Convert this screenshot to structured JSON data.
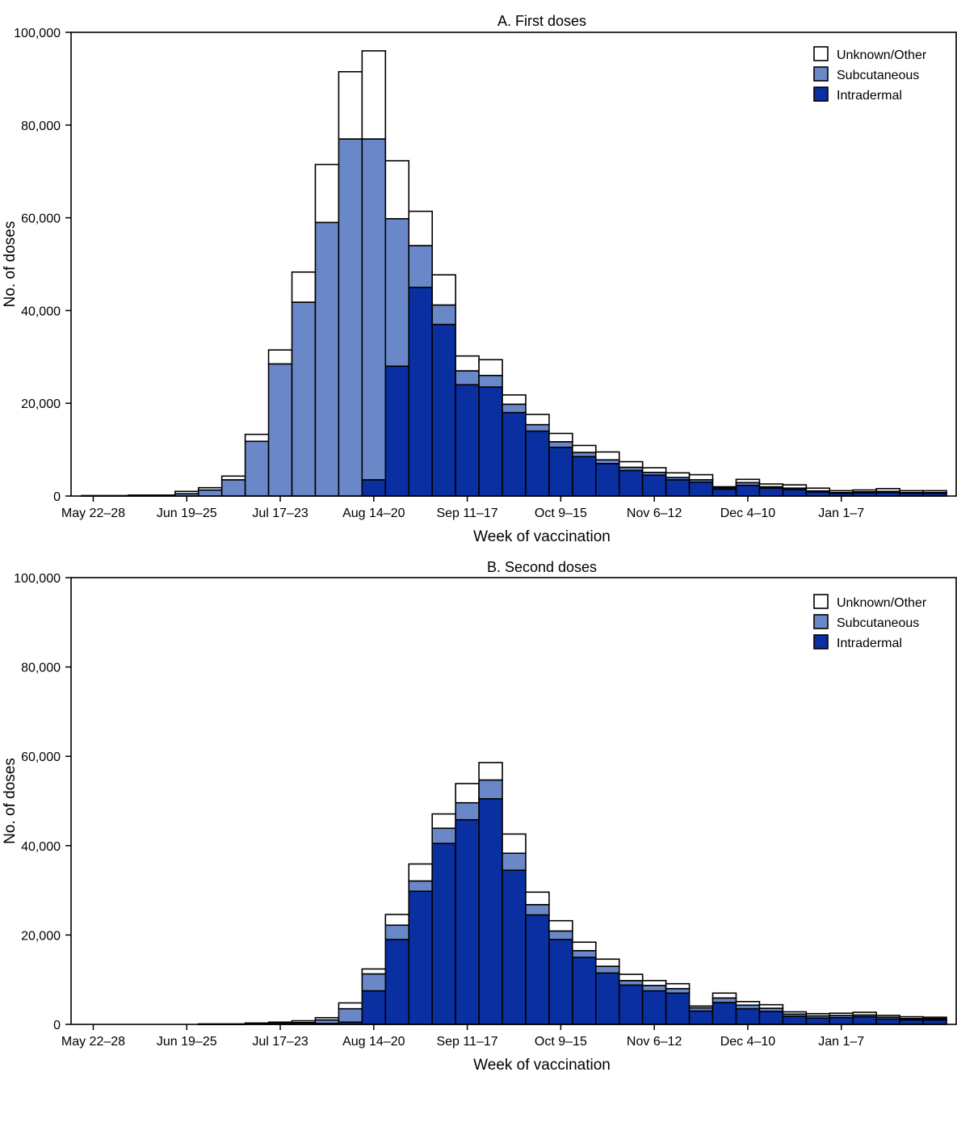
{
  "chart_data": [
    {
      "type": "bar",
      "stacked": true,
      "title": "A. First doses",
      "xlabel": "Week of vaccination",
      "ylabel": "No. of doses",
      "ylim": [
        0,
        100000
      ],
      "yticks": [
        "0",
        "20,000",
        "40,000",
        "60,000",
        "80,000",
        "100,000"
      ],
      "ytick_values": [
        0,
        20000,
        40000,
        60000,
        80000,
        100000
      ],
      "xtick_labels": [
        "May 22–28",
        "Jun 19–25",
        "Jul 17–23",
        "Aug 14–20",
        "Sep 11–17",
        "Oct 9–15",
        "Nov 6–12",
        "Dec 4–10",
        "Jan 1–7"
      ],
      "xtick_every": 4,
      "legend": [
        {
          "name": "Unknown/Other",
          "color": "#ffffff"
        },
        {
          "name": "Subcutaneous",
          "color": "#6a88c8"
        },
        {
          "name": "Intradermal",
          "color": "#0a2fa0"
        }
      ],
      "legend_position": "top-right",
      "series": [
        {
          "name": "Intradermal",
          "color": "#0a2fa0",
          "values": [
            0,
            0,
            0,
            0,
            0,
            0,
            0,
            0,
            0,
            0,
            0,
            0,
            3500,
            28000,
            45000,
            37000,
            24000,
            23500,
            18000,
            14000,
            10500,
            8500,
            7000,
            5500,
            4500,
            3500,
            3000,
            1500,
            2300,
            1700,
            1400,
            900,
            600,
            700,
            800,
            600,
            600
          ]
        },
        {
          "name": "Subcutaneous",
          "color": "#6a88c8",
          "values": [
            0,
            0,
            0,
            0,
            500,
            1300,
            3500,
            11800,
            28500,
            41800,
            59000,
            77000,
            73500,
            31800,
            9000,
            4200,
            3000,
            2500,
            1800,
            1400,
            1200,
            900,
            800,
            700,
            600,
            500,
            500,
            300,
            600,
            300,
            300,
            200,
            150,
            200,
            200,
            150,
            150
          ]
        },
        {
          "name": "Unknown/Other",
          "color": "#ffffff",
          "values": [
            100,
            100,
            200,
            200,
            500,
            500,
            800,
            1500,
            3000,
            6500,
            12500,
            14500,
            19000,
            12500,
            7400,
            6500,
            3200,
            3400,
            2000,
            2200,
            1800,
            1500,
            1700,
            1200,
            1000,
            1000,
            1100,
            200,
            700,
            600,
            700,
            600,
            400,
            400,
            600,
            400,
            400
          ]
        }
      ]
    },
    {
      "type": "bar",
      "stacked": true,
      "title": "B. Second doses",
      "xlabel": "Week of vaccination",
      "ylabel": "No. of doses",
      "ylim": [
        0,
        100000
      ],
      "yticks": [
        "0",
        "20,000",
        "40,000",
        "60,000",
        "80,000",
        "100,000"
      ],
      "ytick_values": [
        0,
        20000,
        40000,
        60000,
        80000,
        100000
      ],
      "xtick_labels": [
        "May 22–28",
        "Jun 19–25",
        "Jul 17–23",
        "Aug 14–20",
        "Sep 11–17",
        "Oct 9–15",
        "Nov 6–12",
        "Dec 4–10",
        "Jan 1–7"
      ],
      "xtick_every": 4,
      "legend": [
        {
          "name": "Unknown/Other",
          "color": "#ffffff"
        },
        {
          "name": "Subcutaneous",
          "color": "#6a88c8"
        },
        {
          "name": "Intradermal",
          "color": "#0a2fa0"
        }
      ],
      "legend_position": "top-right",
      "series": [
        {
          "name": "Intradermal",
          "color": "#0a2fa0",
          "values": [
            0,
            0,
            0,
            0,
            0,
            0,
            0,
            0,
            0,
            100,
            200,
            500,
            7500,
            19000,
            29800,
            40500,
            45800,
            50500,
            34500,
            24500,
            19000,
            15000,
            11500,
            8800,
            7500,
            7000,
            3000,
            4900,
            3500,
            2900,
            1800,
            1400,
            1500,
            1700,
            1200,
            1000,
            1000
          ]
        },
        {
          "name": "Subcutaneous",
          "color": "#6a88c8",
          "values": [
            0,
            0,
            0,
            0,
            0,
            50,
            50,
            100,
            200,
            300,
            800,
            3000,
            3800,
            3200,
            2300,
            3400,
            3800,
            4200,
            3800,
            2300,
            1900,
            1500,
            1500,
            1000,
            1200,
            1000,
            700,
            1000,
            800,
            700,
            500,
            500,
            500,
            400,
            400,
            300,
            300
          ]
        },
        {
          "name": "Unknown/Other",
          "color": "#ffffff",
          "values": [
            0,
            0,
            0,
            0,
            0,
            50,
            50,
            200,
            300,
            400,
            500,
            1300,
            1100,
            2400,
            3800,
            3200,
            4300,
            3900,
            4300,
            2800,
            2300,
            1900,
            1600,
            1400,
            1100,
            1100,
            400,
            1100,
            800,
            800,
            500,
            500,
            500,
            600,
            400,
            400,
            300
          ]
        }
      ]
    }
  ]
}
